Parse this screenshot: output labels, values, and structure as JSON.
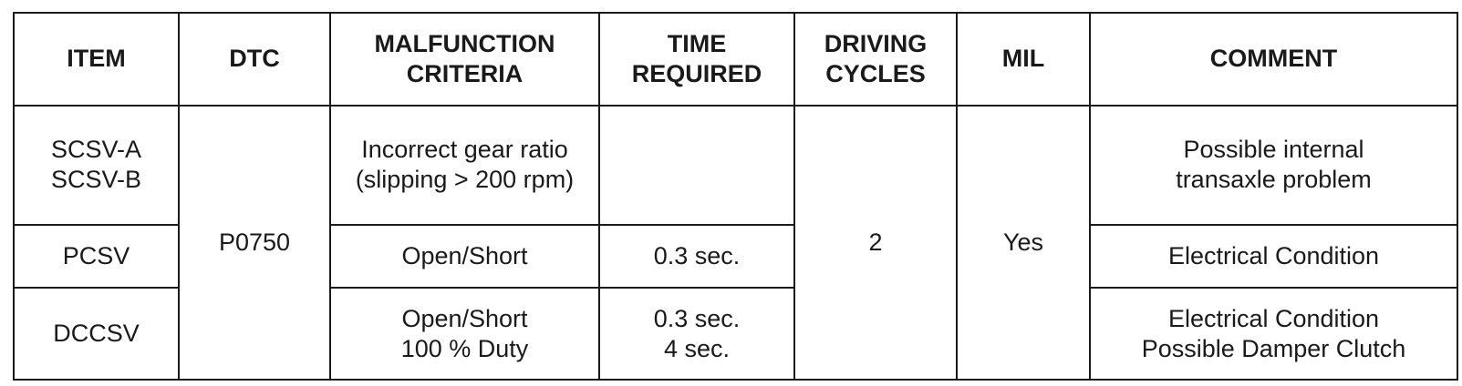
{
  "headers": {
    "item": "ITEM",
    "dtc": "DTC",
    "malfunction": [
      "MALFUNCTION",
      "CRITERIA"
    ],
    "time": [
      "TIME",
      "REQUIRED"
    ],
    "driving": [
      "DRIVING",
      "CYCLES"
    ],
    "mil": "MIL",
    "comment": "COMMENT"
  },
  "shared": {
    "dtc": "P0750",
    "driving_cycles": "2",
    "mil": "Yes"
  },
  "rows": [
    {
      "item": [
        "SCSV-A",
        "SCSV-B"
      ],
      "malfunction": [
        "Incorrect gear ratio",
        "(slipping > 200 rpm)"
      ],
      "time": [],
      "comment": [
        "Possible internal",
        "transaxle problem"
      ]
    },
    {
      "item": [
        "PCSV"
      ],
      "malfunction": [
        "Open/Short"
      ],
      "time": [
        "0.3 sec."
      ],
      "comment": [
        "Electrical Condition"
      ]
    },
    {
      "item": [
        "DCCSV"
      ],
      "malfunction": [
        "Open/Short",
        "100 % Duty"
      ],
      "time": [
        "0.3 sec.",
        "4 sec."
      ],
      "comment": [
        "Electrical Condition",
        "Possible Damper Clutch"
      ]
    }
  ]
}
